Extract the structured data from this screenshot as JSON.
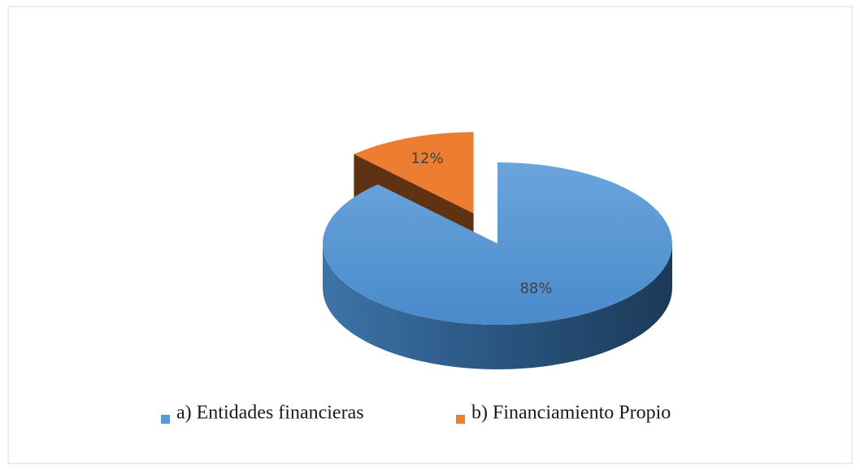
{
  "chart_data": {
    "type": "pie",
    "categories": [
      "a) Entidades financieras",
      "b) Financiamiento Propio"
    ],
    "values": [
      88,
      12
    ],
    "value_labels": [
      "88%",
      "12%"
    ],
    "colors": [
      "#5b9bd5",
      "#ed7d31"
    ],
    "legend": "bottom"
  }
}
